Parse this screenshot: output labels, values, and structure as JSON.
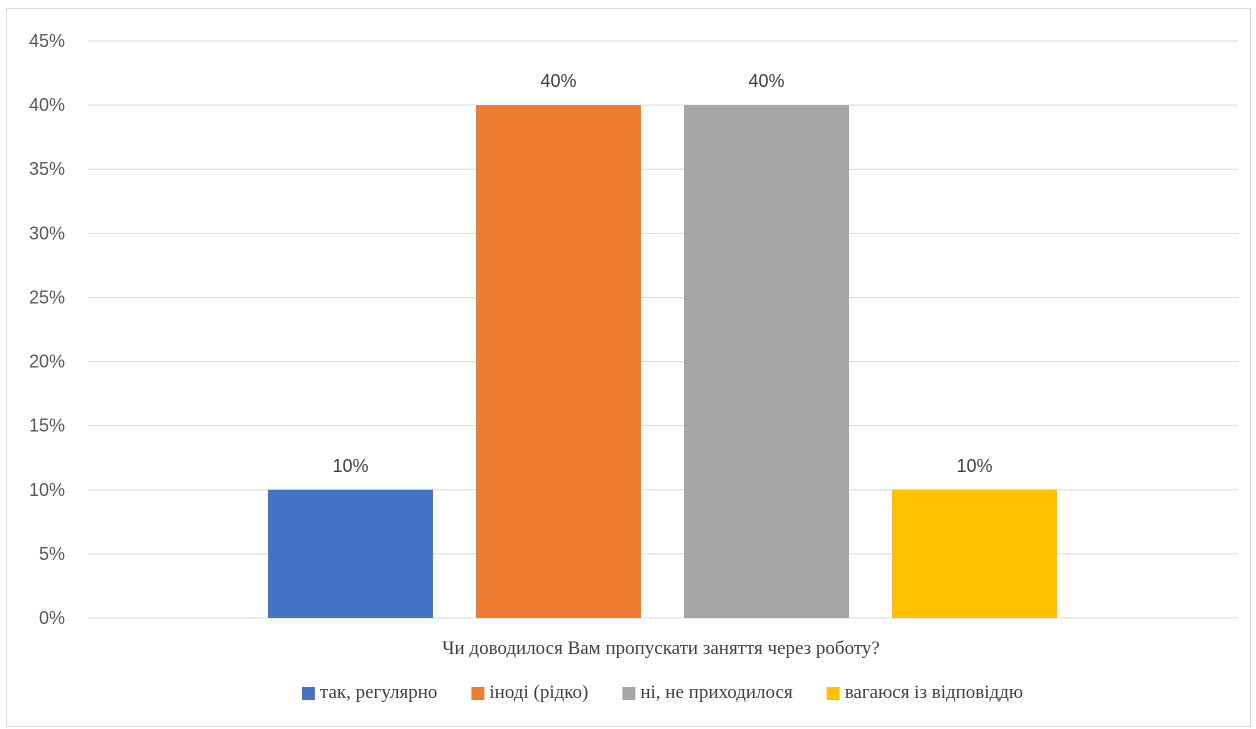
{
  "chart_data": {
    "type": "bar",
    "title": "",
    "xlabel": "Чи доводилося Вам пропускати заняття через роботу?",
    "ylabel": "",
    "ylim": [
      0,
      45
    ],
    "y_ticks": [
      "0%",
      "5%",
      "10%",
      "15%",
      "20%",
      "25%",
      "30%",
      "35%",
      "40%",
      "45%"
    ],
    "y_tick_values": [
      0,
      5,
      10,
      15,
      20,
      25,
      30,
      35,
      40,
      45
    ],
    "grid": true,
    "legend_position": "bottom",
    "series": [
      {
        "name": "так, регулярно",
        "values": [
          10
        ],
        "label": "10%",
        "color": "#4472C4"
      },
      {
        "name": "іноді (рідко)",
        "values": [
          40
        ],
        "label": "40%",
        "color": "#ED7D31"
      },
      {
        "name": "ні, не приходилося",
        "values": [
          40
        ],
        "label": "40%",
        "color": "#A5A5A5"
      },
      {
        "name": "вагаюся із відповіддю",
        "values": [
          10
        ],
        "label": "10%",
        "color": "#FFC000"
      }
    ]
  }
}
